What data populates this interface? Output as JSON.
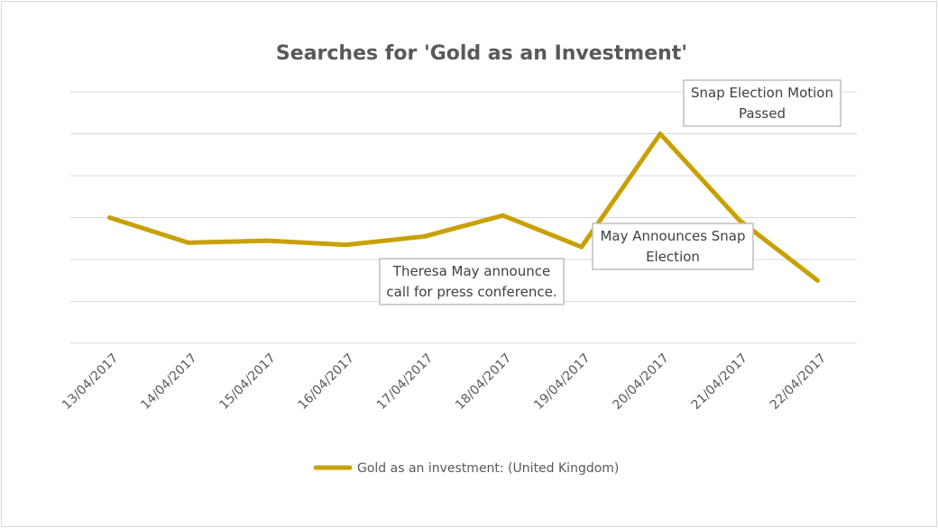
{
  "chart_data": {
    "type": "line",
    "title": "Searches for 'Gold as an Investment'",
    "xlabel": "",
    "ylabel": "",
    "categories": [
      "13/04/2017",
      "14/04/2017",
      "15/04/2017",
      "16/04/2017",
      "17/04/2017",
      "18/04/2017",
      "19/04/2017",
      "20/04/2017",
      "21/04/2017",
      "22/04/2017"
    ],
    "series": [
      {
        "name": "Gold as an investment: (United Kingdom)",
        "values": [
          60,
          48,
          49,
          47,
          51,
          61,
          46,
          100,
          59,
          30
        ]
      }
    ],
    "ylim": [
      0,
      120
    ],
    "grid": true,
    "y_tick_labels_shown": false,
    "legend_position": "bottom",
    "annotations": [
      {
        "lines": [
          "Snap Election Motion",
          "Passed"
        ]
      },
      {
        "lines": [
          "May Announces Snap",
          "Election"
        ]
      },
      {
        "lines": [
          "Theresa May announce",
          "call for press conference."
        ]
      }
    ],
    "colors": {
      "series": "#c9a000",
      "grid": "#d9d9d9",
      "text": "#595959"
    }
  }
}
